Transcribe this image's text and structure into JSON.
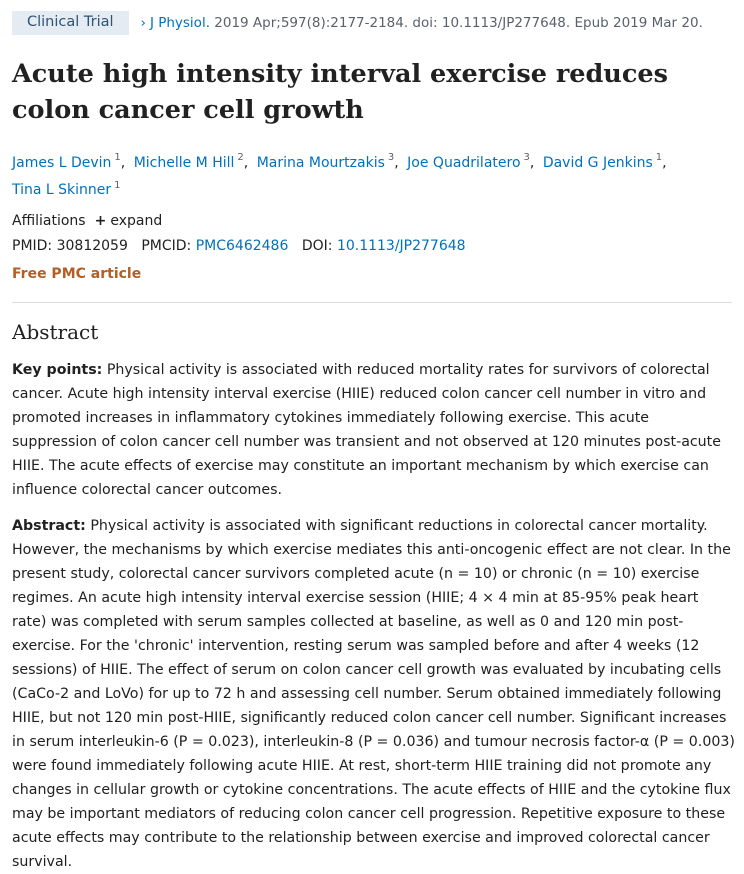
{
  "header": {
    "badge": "Clinical Trial",
    "chevron": "›",
    "journal": "J Physiol.",
    "citation": " 2019 Apr;597(8):2177-2184. doi: 10.1113/JP277648. Epub 2019 Mar 20."
  },
  "title": "Acute high intensity interval exercise reduces colon cancer cell growth",
  "authors": [
    {
      "name": "James L Devin",
      "aff": "1"
    },
    {
      "name": "Michelle M Hill",
      "aff": "2"
    },
    {
      "name": "Marina Mourtzakis",
      "aff": "3"
    },
    {
      "name": "Joe Quadrilatero",
      "aff": "3"
    },
    {
      "name": "David G Jenkins",
      "aff": "1"
    },
    {
      "name": "Tina L Skinner",
      "aff": "1"
    }
  ],
  "affiliations": {
    "label": "Affiliations",
    "expand_icon": "plus-icon",
    "expand_label": "expand"
  },
  "ids": {
    "pmid_label": "PMID:",
    "pmid": "30812059",
    "pmcid_label": "PMCID:",
    "pmcid": "PMC6462486",
    "doi_label": "DOI:",
    "doi": "10.1113/JP277648"
  },
  "free_pmc": "Free PMC article",
  "abstract": {
    "heading": "Abstract",
    "key_label": "Key points:",
    "key_text": " Physical activity is associated with reduced mortality rates for survivors of colorectal cancer. Acute high intensity interval exercise (HIIE) reduced colon cancer cell number in vitro and promoted increases in inflammatory cytokines immediately following exercise. This acute suppression of colon cancer cell number was transient and not observed at 120 minutes post-acute HIIE. The acute effects of exercise may constitute an important mechanism by which exercise can influence colorectal cancer outcomes.",
    "abs_label": "Abstract:",
    "abs_text": " Physical activity is associated with significant reductions in colorectal cancer mortality. However, the mechanisms by which exercise mediates this anti-oncogenic effect are not clear. In the present study, colorectal cancer survivors completed acute (n = 10) or chronic (n = 10) exercise regimes. An acute high intensity interval exercise session (HIIE; 4 × 4 min at 85-95% peak heart rate) was completed with serum samples collected at baseline, as well as 0 and 120 min post-exercise. For the 'chronic' intervention, resting serum was sampled before and after 4 weeks (12 sessions) of HIIE. The effect of serum on colon cancer cell growth was evaluated by incubating cells (CaCo-2 and LoVo) for up to 72 h and assessing cell number. Serum obtained immediately following HIIE, but not 120 min post-HIIE, significantly reduced colon cancer cell number. Significant increases in serum interleukin-6 (P = 0.023), interleukin-8 (P = 0.036) and tumour necrosis factor-α (P = 0.003) were found immediately following acute HIIE. At rest, short-term HIIE training did not promote any changes in cellular growth or cytokine concentrations. The acute effects of HIIE and the cytokine flux may be important mediators of reducing colon cancer cell progression. Repetitive exposure to these acute effects may contribute to the relationship between exercise and improved colorectal cancer survival."
  }
}
